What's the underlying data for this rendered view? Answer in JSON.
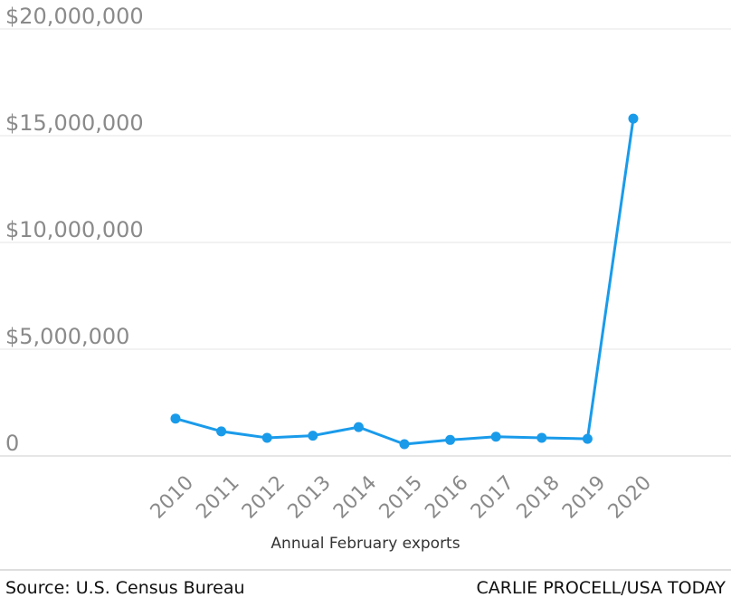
{
  "chart_data": {
    "type": "line",
    "title": "",
    "xlabel": "Annual February exports",
    "ylabel": "",
    "categories": [
      "2010",
      "2011",
      "2012",
      "2013",
      "2014",
      "2015",
      "2016",
      "2017",
      "2018",
      "2019",
      "2020"
    ],
    "series": [
      {
        "values": [
          1750000,
          1150000,
          850000,
          950000,
          1350000,
          550000,
          750000,
          900000,
          850000,
          800000,
          15800000
        ]
      }
    ],
    "ylim": [
      0,
      20000000
    ],
    "y_ticks": [
      {
        "value": 0,
        "label": "0"
      },
      {
        "value": 5000000,
        "label": "$5,000,000"
      },
      {
        "value": 10000000,
        "label": "$10,000,000"
      },
      {
        "value": 15000000,
        "label": "$15,000,000"
      },
      {
        "value": 20000000,
        "label": "$20,000,000"
      }
    ],
    "grid": true,
    "colors": {
      "line": "#1a9bea",
      "grid": "#e6e6e6",
      "tick_text": "#8a8a8a"
    }
  },
  "footer": {
    "source": "Source: U.S. Census Bureau",
    "credit": "CARLIE PROCELL/USA TODAY"
  }
}
